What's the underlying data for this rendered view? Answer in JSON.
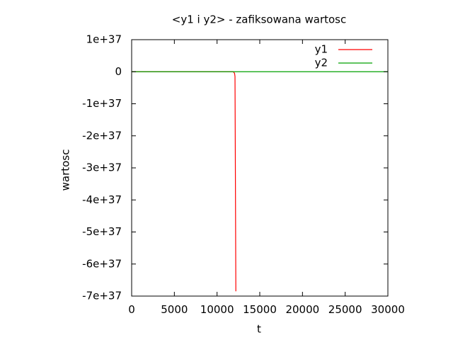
{
  "chart_data": {
    "type": "line",
    "title": "<y1 i y2> - zafiksowana wartosc",
    "xlabel": "t",
    "ylabel": "wartosc",
    "xlim": [
      0,
      30000
    ],
    "ylim": [
      -7e+37,
      1e+37
    ],
    "x_ticks": [
      0,
      5000,
      10000,
      15000,
      20000,
      25000,
      30000
    ],
    "x_tick_labels": [
      "0",
      "5000",
      "10000",
      "15000",
      "20000",
      "25000",
      "30000"
    ],
    "y_ticks": [
      1e+37,
      0,
      -1e+37,
      -2e+37,
      -3e+37,
      -4e+37,
      -5e+37,
      -6e+37,
      -7e+37
    ],
    "y_tick_labels": [
      "1e+37",
      "0",
      "-1e+37",
      "-2e+37",
      "-3e+37",
      "-4e+37",
      "-5e+37",
      "-6e+37",
      "-7e+37"
    ],
    "grid": false,
    "legend_position": "top-right",
    "series": [
      {
        "name": "y1",
        "color": "#ff0000",
        "x": [
          0,
          11900,
          12050,
          12100,
          12200
        ],
        "y": [
          0,
          0,
          -5e+35,
          -1.5e+36,
          -6.85e+37
        ]
      },
      {
        "name": "y2",
        "color": "#00a000",
        "x": [
          0,
          30000
        ],
        "y": [
          0,
          0
        ]
      }
    ]
  }
}
